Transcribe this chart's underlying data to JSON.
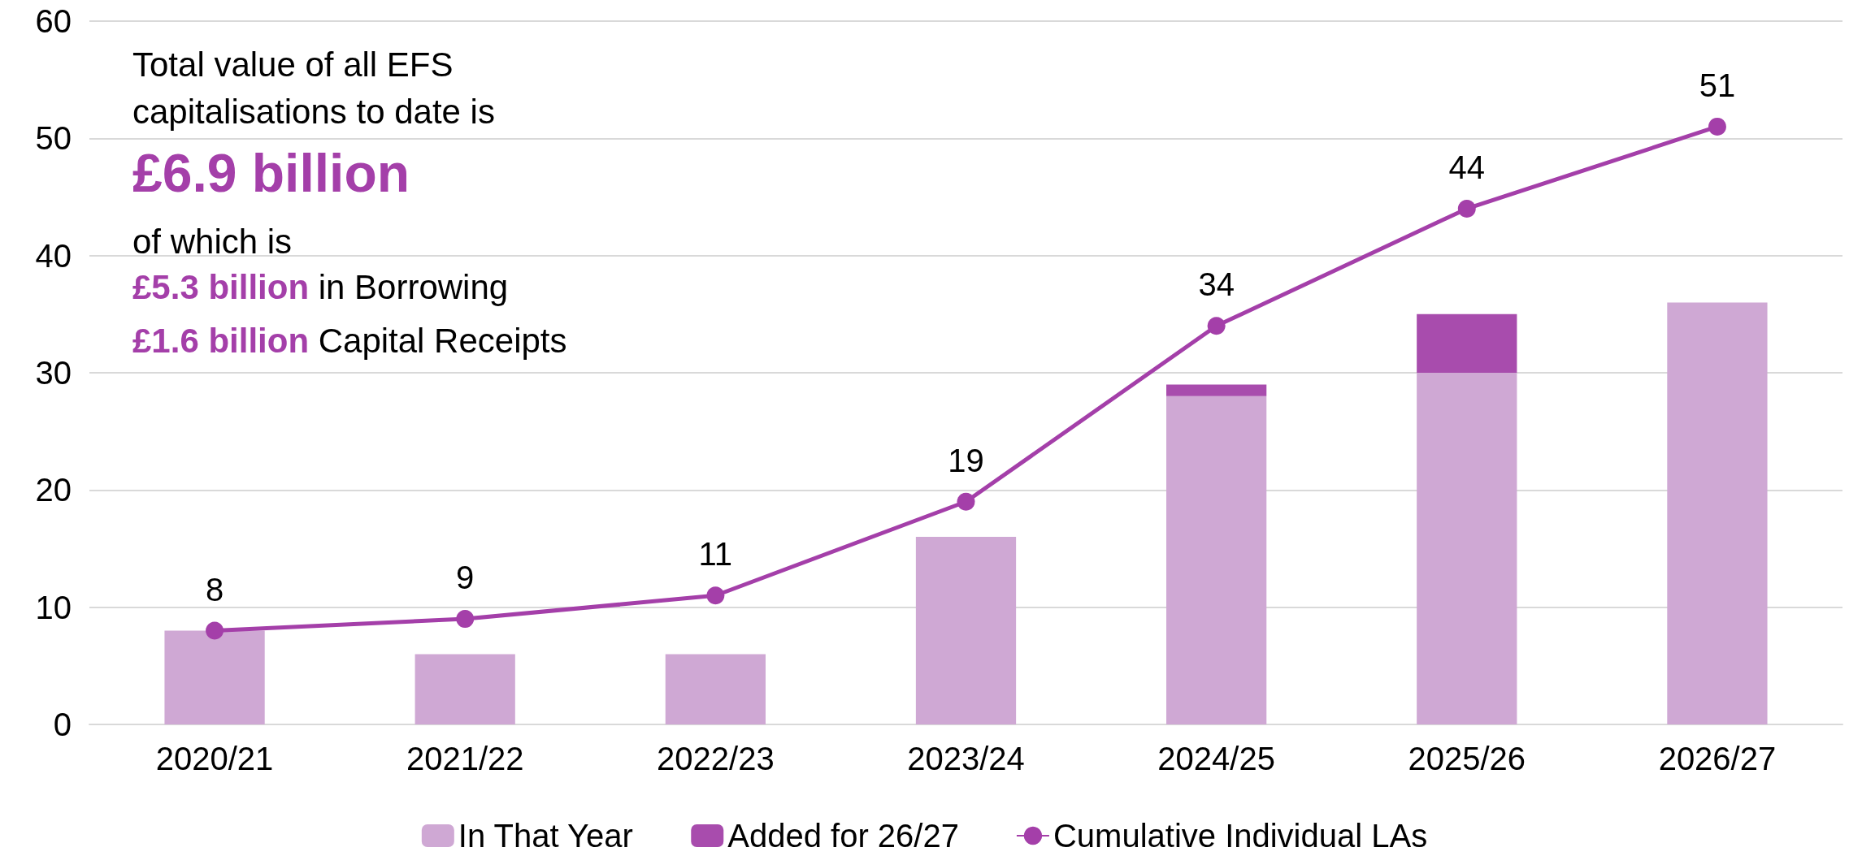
{
  "chart_data": {
    "type": "bar",
    "stacked": true,
    "categories": [
      "2020/21",
      "2021/22",
      "2022/23",
      "2023/24",
      "2024/25",
      "2025/26",
      "2026/27"
    ],
    "series": [
      {
        "name": "In That Year",
        "color": "#cfa8d4",
        "values": [
          8,
          6,
          6,
          16,
          28,
          30,
          36
        ]
      },
      {
        "name": "Added for 26/27",
        "color": "#a84cad",
        "values": [
          0,
          0,
          0,
          0,
          1,
          5,
          0
        ]
      },
      {
        "name": "Cumulative Individual LAs",
        "type": "line",
        "color": "#a43fa9",
        "values": [
          8,
          9,
          11,
          19,
          34,
          44,
          51
        ],
        "data_labels": true
      }
    ],
    "ylim": [
      0,
      60
    ],
    "yticks": [
      0,
      10,
      20,
      30,
      40,
      50,
      60
    ],
    "grid": "y",
    "legend": "bottom",
    "marker": "circle",
    "annotations": [
      "Total value of all EFS capitalisations to date is",
      "£6.9 billion",
      "of which is",
      "£5.3 billion in Borrowing",
      "£1.6 billion Capital Receipts"
    ]
  }
}
